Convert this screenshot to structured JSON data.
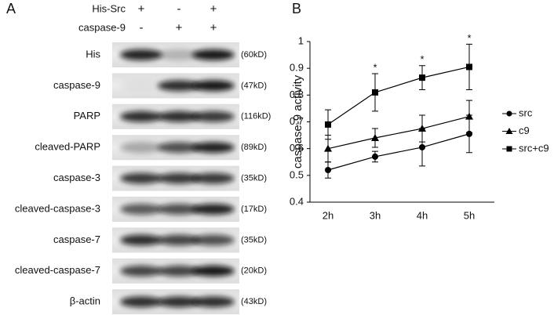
{
  "panel_a": {
    "label": "A",
    "treatments": [
      {
        "name": "His-Src",
        "signs": [
          "+",
          "-",
          "+"
        ]
      },
      {
        "name": "caspase-9",
        "signs": [
          "-",
          "+",
          "+"
        ]
      }
    ],
    "rows": [
      {
        "name": "His",
        "size": "(60kD)"
      },
      {
        "name": "caspase-9",
        "size": "(47kD)"
      },
      {
        "name": "PARP",
        "size": "(116kD)"
      },
      {
        "name": "cleaved-PARP",
        "size": "(89kD)"
      },
      {
        "name": "caspase-3",
        "size": "(35kD)"
      },
      {
        "name": "cleaved-caspase-3",
        "size": "(17kD)"
      },
      {
        "name": "caspase-7",
        "size": "(35kD)"
      },
      {
        "name": "cleaved-caspase-7",
        "size": "(20kD)"
      },
      {
        "name": "β-actin",
        "size": "(43kD)"
      }
    ]
  },
  "chart_data": {
    "type": "line",
    "label": "B",
    "y_label": "caspase-9 activity",
    "categories": [
      "2h",
      "3h",
      "4h",
      "5h"
    ],
    "series": [
      {
        "name": "src",
        "color": "#000000",
        "marker": "circle",
        "values": [
          0.52,
          0.57,
          0.605,
          0.655
        ],
        "errors": [
          0.03,
          0.02,
          0.07,
          0.07
        ]
      },
      {
        "name": "c9",
        "color": "#000000",
        "marker": "triangle",
        "values": [
          0.6,
          0.64,
          0.675,
          0.72
        ],
        "errors": [
          0.05,
          0.035,
          0.05,
          0.06
        ]
      },
      {
        "name": "src+c9",
        "color": "#000000",
        "marker": "square",
        "values": [
          0.69,
          0.81,
          0.865,
          0.905
        ],
        "errors": [
          0.055,
          0.07,
          0.045,
          0.085
        ]
      }
    ],
    "annotations": [
      null,
      "*",
      "*",
      "*"
    ],
    "ylim": [
      0.4,
      1
    ],
    "yticks": [
      0.4,
      0.5,
      0.6,
      0.7,
      0.8,
      0.9,
      1
    ],
    "legend": "right"
  }
}
